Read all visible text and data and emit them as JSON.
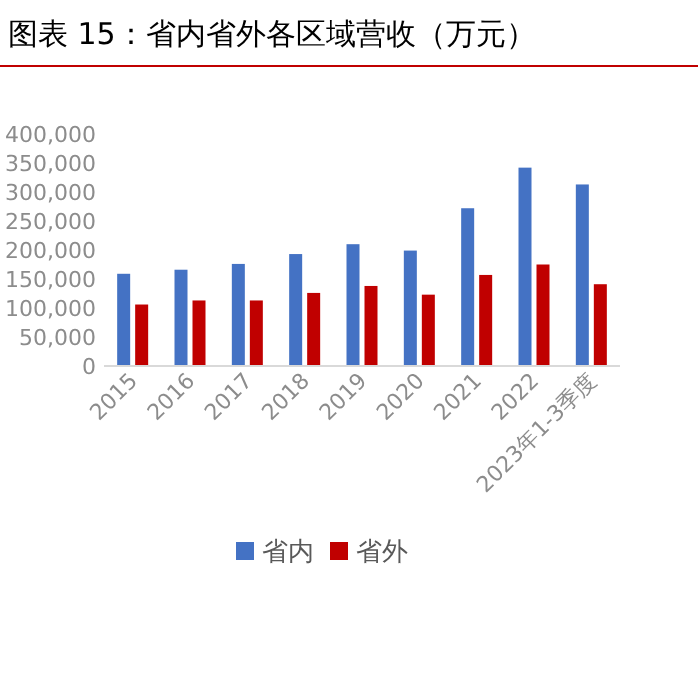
{
  "chart_data": {
    "type": "bar",
    "title": "图表 15：省内省外各区域营收（万元）",
    "categories": [
      "2015",
      "2016",
      "2017",
      "2018",
      "2019",
      "2020",
      "2021",
      "2022",
      "2023年1-3季度"
    ],
    "series": [
      {
        "name": "省内",
        "color": "#4472c4",
        "values": [
          159000,
          166000,
          176000,
          193000,
          210000,
          199000,
          272000,
          342000,
          313000
        ]
      },
      {
        "name": "省外",
        "color": "#c00000",
        "values": [
          106000,
          113000,
          113000,
          126000,
          138000,
          123000,
          157000,
          175000,
          141000
        ]
      }
    ],
    "ylim": [
      0,
      400000
    ],
    "yticks": [
      {
        "value": 0,
        "label": "0"
      },
      {
        "value": 50000,
        "label": "50,000"
      },
      {
        "value": 100000,
        "label": "100,000"
      },
      {
        "value": 150000,
        "label": "150,000"
      },
      {
        "value": 200000,
        "label": "200,000"
      },
      {
        "value": 250000,
        "label": "250,000"
      },
      {
        "value": 300000,
        "label": "300,000"
      },
      {
        "value": 350000,
        "label": "350,000"
      },
      {
        "value": 400000,
        "label": "400,000"
      }
    ],
    "legend": "bottom"
  }
}
